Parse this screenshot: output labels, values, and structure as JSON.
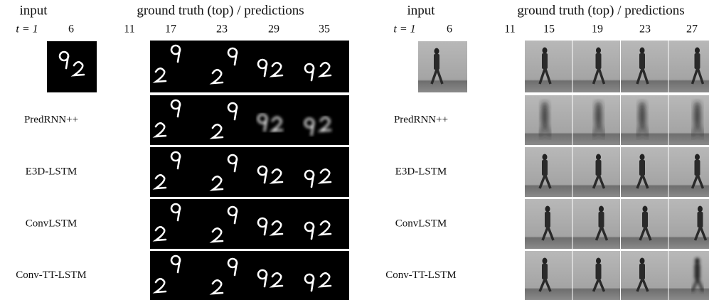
{
  "panels": [
    {
      "header": {
        "input": "input",
        "output": "ground truth (top) / predictions"
      },
      "timesteps": [
        "t = 1",
        "6",
        "11",
        "17",
        "23",
        "29",
        "35"
      ],
      "rows": [
        "PredRNN++",
        "E3D-LSTM",
        "ConvLSTM",
        "Conv-TT-LSTM"
      ]
    },
    {
      "header": {
        "input": "input",
        "output": "ground truth (top) / predictions"
      },
      "timesteps": [
        "t = 1",
        "6",
        "11",
        "15",
        "19",
        "23",
        "27"
      ],
      "rows": [
        "PredRNN++",
        "E3D-LSTM",
        "ConvLSTM",
        "Conv-TT-LSTM"
      ]
    }
  ]
}
